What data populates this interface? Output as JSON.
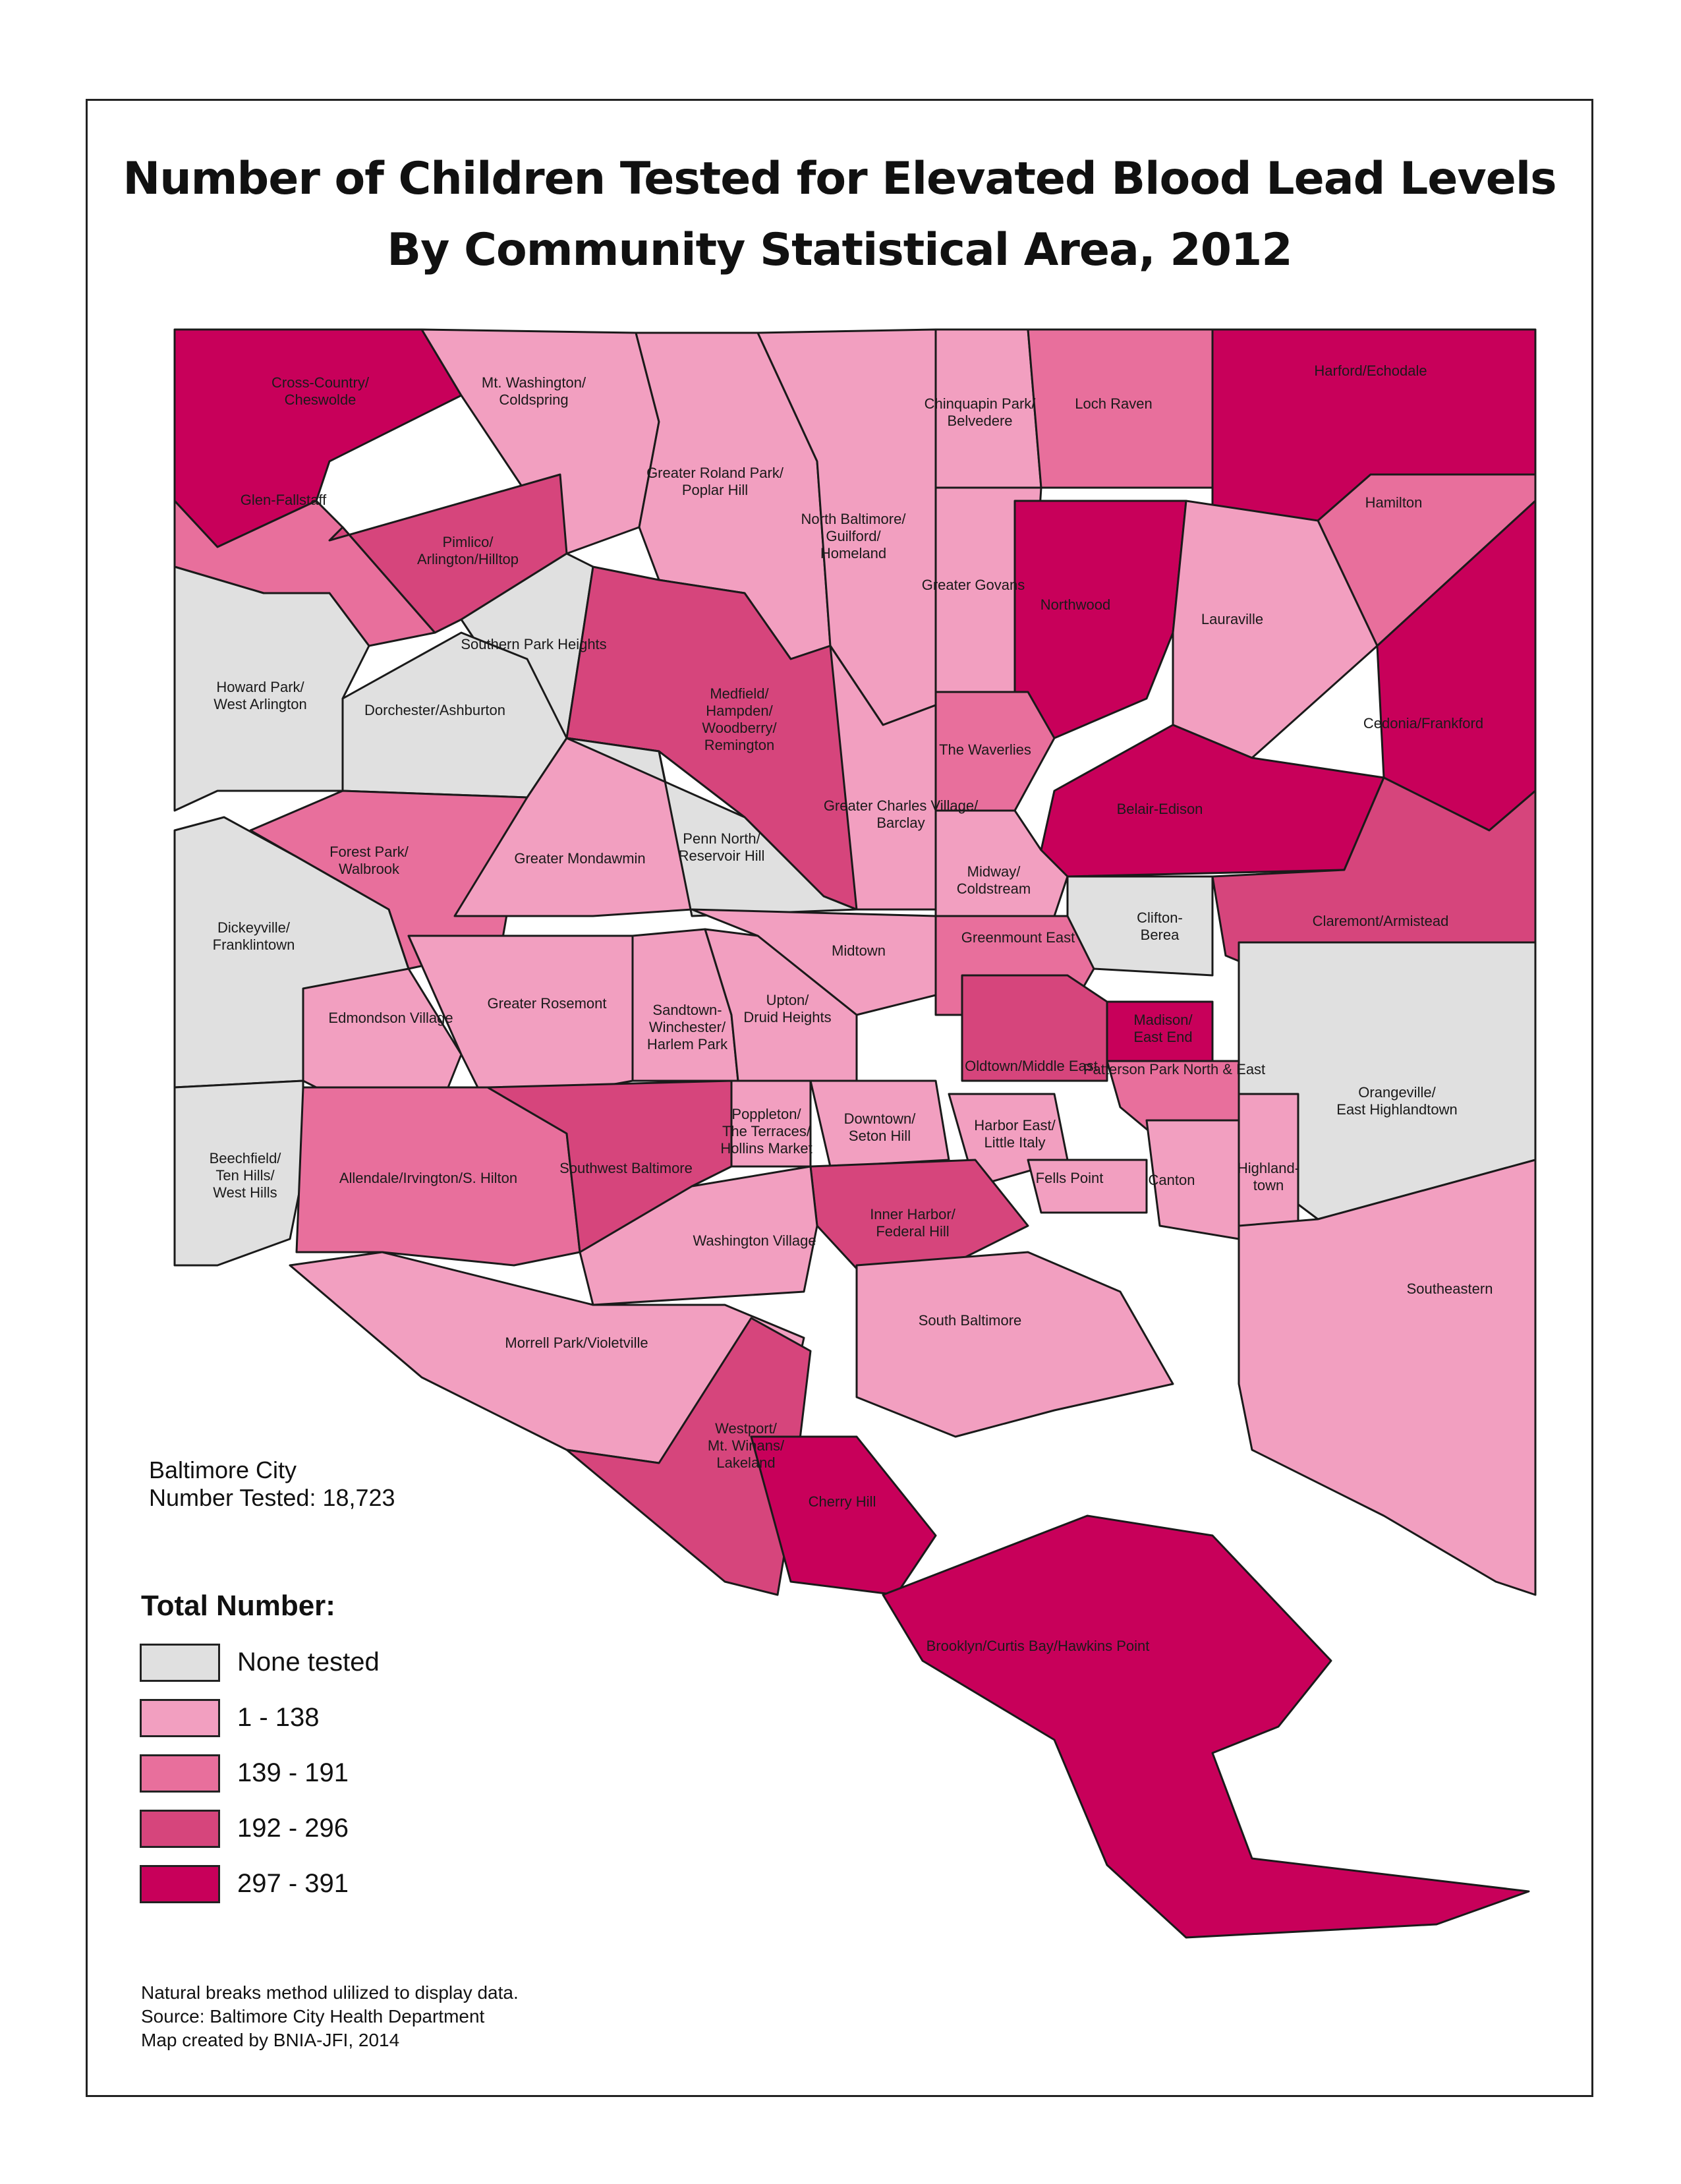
{
  "title": {
    "line1": "Number of Children Tested for Elevated Blood Lead Levels",
    "line2": "By Community Statistical Area, 2012"
  },
  "summary": {
    "city": "Baltimore City",
    "number_tested": "Number Tested:  18,723"
  },
  "legend": {
    "title": "Total Number:",
    "classes": [
      {
        "label": "None tested",
        "color": "#e0e0e0"
      },
      {
        "label": "1 - 138",
        "color": "#f29fc0"
      },
      {
        "label": "139 - 191",
        "color": "#e86f9c"
      },
      {
        "label": "192 - 296",
        "color": "#d6457c"
      },
      {
        "label": "297 - 391",
        "color": "#c8005a"
      }
    ]
  },
  "notes": {
    "method": "Natural breaks method ulilized to display data.",
    "source": "Source: Baltimore City Health Department",
    "credit": "Map created by BNIA-JFI, 2014"
  },
  "areas": [
    {
      "name": "Cross-Country/ Cheswolde",
      "class": 4
    },
    {
      "name": "Mt. Washington/ Coldspring",
      "class": 1
    },
    {
      "name": "Greater Roland Park/ Poplar Hill",
      "class": 1
    },
    {
      "name": "North Baltimore/ Guilford/ Homeland",
      "class": 1
    },
    {
      "name": "Chinquapin Park/ Belvedere",
      "class": 1
    },
    {
      "name": "Loch Raven",
      "class": 2
    },
    {
      "name": "Harford/Echodale",
      "class": 4
    },
    {
      "name": "Glen-Fallstaff",
      "class": 2
    },
    {
      "name": "Pimlico/ Arlington/Hilltop",
      "class": 3
    },
    {
      "name": "Hamilton",
      "class": 2
    },
    {
      "name": "Greater Govans",
      "class": 1
    },
    {
      "name": "Northwood",
      "class": 4
    },
    {
      "name": "Lauraville",
      "class": 1
    },
    {
      "name": "Southern Park Heights",
      "class": 0
    },
    {
      "name": "Howard Park/ West Arlington",
      "class": 0
    },
    {
      "name": "Dorchester/Ashburton",
      "class": 0
    },
    {
      "name": "Medfield/ Hampden/ Woodberry/ Remington",
      "class": 3
    },
    {
      "name": "The Waverlies",
      "class": 2
    },
    {
      "name": "Cedonia/Frankford",
      "class": 4
    },
    {
      "name": "Greater Charles Village/ Barclay",
      "class": 1
    },
    {
      "name": "Belair-Edison",
      "class": 4
    },
    {
      "name": "Forest Park/ Walbrook",
      "class": 2
    },
    {
      "name": "Greater Mondawmin",
      "class": 1
    },
    {
      "name": "Penn North/ Reservoir Hill",
      "class": 0
    },
    {
      "name": "Midway/ Coldstream",
      "class": 1
    },
    {
      "name": "Clifton- Berea",
      "class": 0
    },
    {
      "name": "Claremont/Armistead",
      "class": 3
    },
    {
      "name": "Dickeyville/ Franklintown",
      "class": 0
    },
    {
      "name": "Midtown",
      "class": 1
    },
    {
      "name": "Greenmount East",
      "class": 2
    },
    {
      "name": "Edmondson Village",
      "class": 1
    },
    {
      "name": "Greater Rosemont",
      "class": 1
    },
    {
      "name": "Sandtown- Winchester/ Harlem Park",
      "class": 1
    },
    {
      "name": "Upton/ Druid Heights",
      "class": 1
    },
    {
      "name": "Madison/ East End",
      "class": 4
    },
    {
      "name": "Oldtown/Middle East",
      "class": 3
    },
    {
      "name": "Patterson Park North & East",
      "class": 2
    },
    {
      "name": "Orangeville/ East Highlandtown",
      "class": 0
    },
    {
      "name": "Beechfield/ Ten Hills/ West Hills",
      "class": 0
    },
    {
      "name": "Poppleton/ The Terraces/ Hollins Market",
      "class": 1
    },
    {
      "name": "Downtown/ Seton Hill",
      "class": 1
    },
    {
      "name": "Harbor East/ Little Italy",
      "class": 1
    },
    {
      "name": "Allendale/Irvington/S. Hilton",
      "class": 2
    },
    {
      "name": "Southwest Baltimore",
      "class": 3
    },
    {
      "name": "Highland- town",
      "class": 1
    },
    {
      "name": "Fells Point",
      "class": 1
    },
    {
      "name": "Canton",
      "class": 1
    },
    {
      "name": "Inner Harbor/ Federal Hill",
      "class": 3
    },
    {
      "name": "Washington Village",
      "class": 1
    },
    {
      "name": "Southeastern",
      "class": 1
    },
    {
      "name": "South Baltimore",
      "class": 1
    },
    {
      "name": "Morrell Park/Violetville",
      "class": 1
    },
    {
      "name": "Westport/ Mt. Winans/ Lakeland",
      "class": 3
    },
    {
      "name": "Cherry Hill",
      "class": 4
    },
    {
      "name": "Brooklyn/Curtis Bay/Hawkins Point",
      "class": 4
    }
  ]
}
